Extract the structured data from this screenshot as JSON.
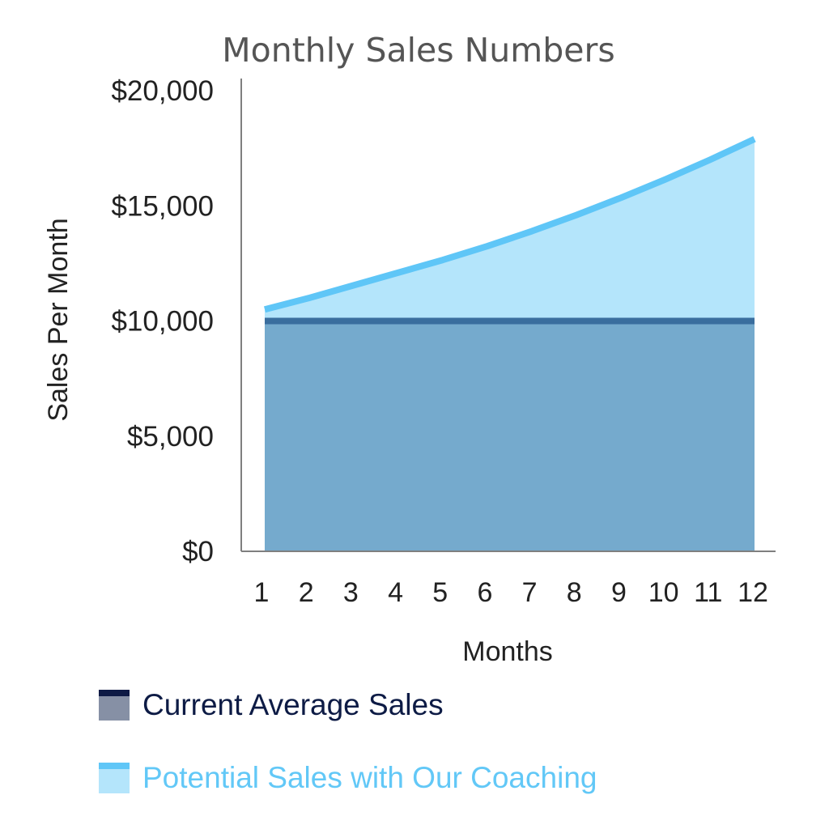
{
  "chart_data": {
    "type": "area",
    "title": "Monthly Sales Numbers",
    "xlabel": "Months",
    "ylabel": "Sales Per Month",
    "x": [
      1,
      2,
      3,
      4,
      5,
      6,
      7,
      8,
      9,
      10,
      11,
      12
    ],
    "ylim": [
      0,
      20000
    ],
    "yticks": [
      0,
      5000,
      10000,
      15000,
      20000
    ],
    "ytick_labels": [
      "$0",
      "$5,000",
      "$10,000",
      "$15,000",
      "$20,000"
    ],
    "grid": false,
    "legend_position": "bottom-left",
    "series": [
      {
        "name": "Current Average Sales",
        "values": [
          10000,
          10000,
          10000,
          10000,
          10000,
          10000,
          10000,
          10000,
          10000,
          10000,
          10000,
          10000
        ],
        "line_color": "#3A6E9E",
        "fill_color": "#75AACD",
        "legend_text_color": "#0D1B45",
        "legend_cap_color": "#0E1A45",
        "legend_fill_color": "#8690A5"
      },
      {
        "name": "Potential Sales with Our Coaching",
        "values": [
          10500,
          11000,
          11550,
          12100,
          12650,
          13250,
          13900,
          14600,
          15350,
          16150,
          17000,
          17900
        ],
        "line_color": "#5FC6F7",
        "fill_color": "#B4E5FB",
        "legend_text_color": "#62C8F7",
        "legend_cap_color": "#5FC6F7",
        "legend_fill_color": "#B4E5FB"
      }
    ]
  },
  "colors": {
    "axis": "#7F7F7F",
    "title": "#555555",
    "tick_text": "#222222"
  }
}
